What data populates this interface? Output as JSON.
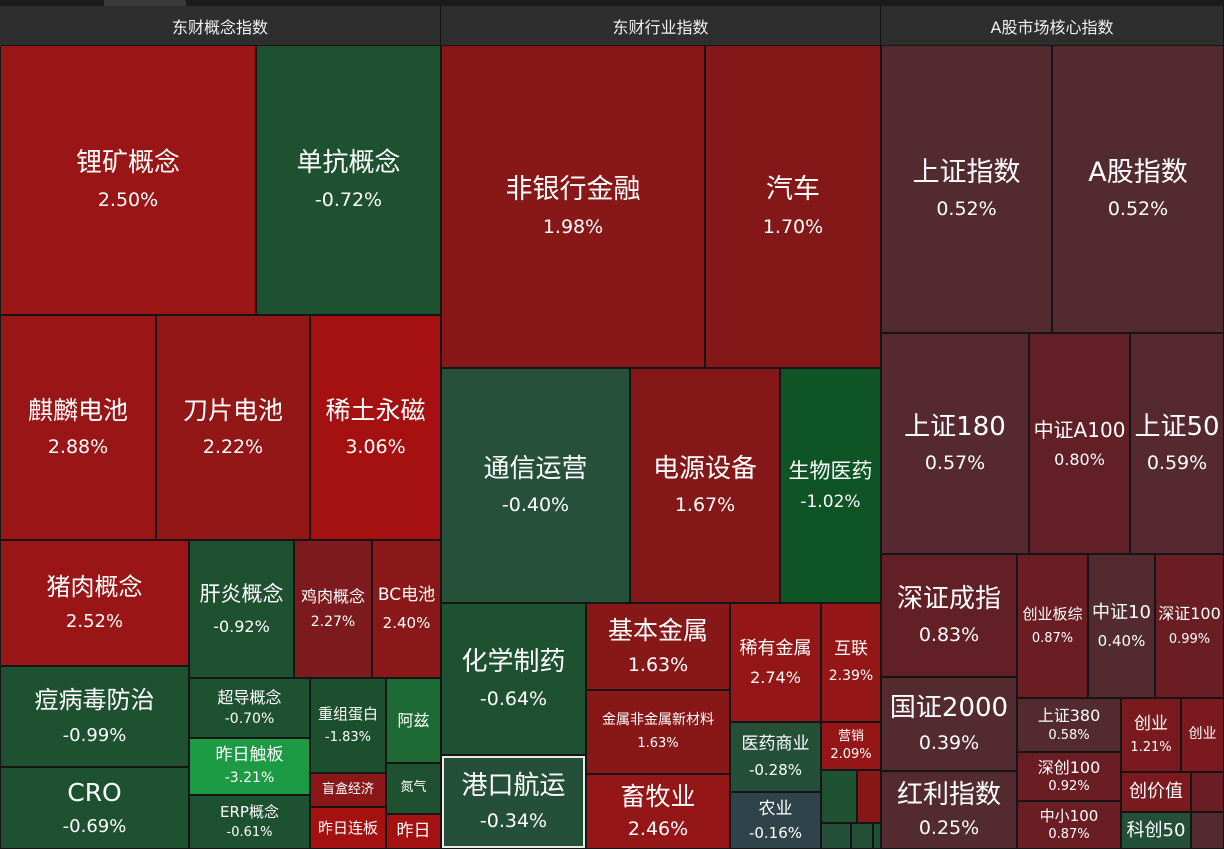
{
  "sections": [
    {
      "title": "东财概念指数"
    },
    {
      "title": "东财行业指数"
    },
    {
      "title": "A股市场核心指数"
    }
  ],
  "colors": {
    "red_strong": "#9e1212",
    "red": "#8a1a1a",
    "red_dark": "#7a1a1e",
    "maroon": "#4f2830",
    "green": "#1e5130",
    "green_bright": "#1d9a44",
    "green_dark": "#24503a",
    "slate": "#2f434a"
  },
  "tiles": {
    "c0": {
      "name": "锂矿概念",
      "pct": "2.50%"
    },
    "c1": {
      "name": "单抗概念",
      "pct": "-0.72%"
    },
    "c2": {
      "name": "麒麟电池",
      "pct": "2.88%"
    },
    "c3": {
      "name": "刀片电池",
      "pct": "2.22%"
    },
    "c4": {
      "name": "稀土永磁",
      "pct": "3.06%"
    },
    "c5": {
      "name": "猪肉概念",
      "pct": "2.52%"
    },
    "c6": {
      "name": "肝炎概念",
      "pct": "-0.92%"
    },
    "c7": {
      "name": "鸡肉概念",
      "pct": "2.27%"
    },
    "c8": {
      "name": "BC电池",
      "pct": "2.40%"
    },
    "c9": {
      "name": "痘病毒防治",
      "pct": "-0.99%"
    },
    "c10": {
      "name": "超导概念",
      "pct": "-0.70%"
    },
    "c11": {
      "name": "重组蛋白",
      "pct": "-1.83%"
    },
    "c12": {
      "name": "阿兹",
      "pct": ""
    },
    "c13": {
      "name": "昨日触板",
      "pct": "-3.21%"
    },
    "c14": {
      "name": "CRO",
      "pct": "-0.69%"
    },
    "c15": {
      "name": "ERP概念",
      "pct": "-0.61%"
    },
    "c16": {
      "name": "盲盒经济",
      "pct": ""
    },
    "c17": {
      "name": "氮气",
      "pct": ""
    },
    "c18": {
      "name": "昨日连板",
      "pct": ""
    },
    "c19": {
      "name": "昨日",
      "pct": ""
    },
    "i0": {
      "name": "非银行金融",
      "pct": "1.98%"
    },
    "i1": {
      "name": "汽车",
      "pct": "1.70%"
    },
    "i2": {
      "name": "通信运营",
      "pct": "-0.40%"
    },
    "i3": {
      "name": "电源设备",
      "pct": "1.67%"
    },
    "i4": {
      "name": "生物医药",
      "pct": "-1.02%"
    },
    "i5": {
      "name": "化学制药",
      "pct": "-0.64%"
    },
    "i6": {
      "name": "基本金属",
      "pct": "1.63%"
    },
    "i7": {
      "name": "稀有金属",
      "pct": "2.74%"
    },
    "i8": {
      "name": "互联",
      "pct": "2.39%"
    },
    "i9": {
      "name": "金属非金属新材料",
      "pct": "1.63%"
    },
    "i10": {
      "name": "港口航运",
      "pct": "-0.34%"
    },
    "i11": {
      "name": "医药商业",
      "pct": "-0.28%"
    },
    "i12": {
      "name": "营销",
      "pct": "2.09%"
    },
    "i13": {
      "name": "畜牧业",
      "pct": "2.46%"
    },
    "i14": {
      "name": "农业",
      "pct": "-0.16%"
    },
    "i15": {
      "name": "",
      "pct": ""
    },
    "i16": {
      "name": "",
      "pct": ""
    },
    "i17": {
      "name": "",
      "pct": ""
    },
    "i18": {
      "name": "",
      "pct": ""
    },
    "i19": {
      "name": "",
      "pct": ""
    },
    "a0": {
      "name": "上证指数",
      "pct": "0.52%"
    },
    "a1": {
      "name": "A股指数",
      "pct": "0.52%"
    },
    "a2": {
      "name": "上证180",
      "pct": "0.57%"
    },
    "a3": {
      "name": "中证A100",
      "pct": "0.80%"
    },
    "a4": {
      "name": "上证50",
      "pct": "0.59%"
    },
    "a5": {
      "name": "深证成指",
      "pct": "0.83%"
    },
    "a6": {
      "name": "创业板综",
      "pct": "0.87%"
    },
    "a7": {
      "name": "中证10",
      "pct": "0.40%"
    },
    "a8": {
      "name": "深证100",
      "pct": "0.99%"
    },
    "a9": {
      "name": "国证2000",
      "pct": "0.39%"
    },
    "a10": {
      "name": "上证380",
      "pct": "0.58%"
    },
    "a11": {
      "name": "创业",
      "pct": "1.21%"
    },
    "a12": {
      "name": "创业",
      "pct": ""
    },
    "a13": {
      "name": "深创100",
      "pct": "0.92%"
    },
    "a14": {
      "name": "红利指数",
      "pct": "0.25%"
    },
    "a15": {
      "name": "中小100",
      "pct": "0.87%"
    },
    "a16": {
      "name": "创价值",
      "pct": ""
    },
    "a17": {
      "name": "科创50",
      "pct": ""
    }
  }
}
